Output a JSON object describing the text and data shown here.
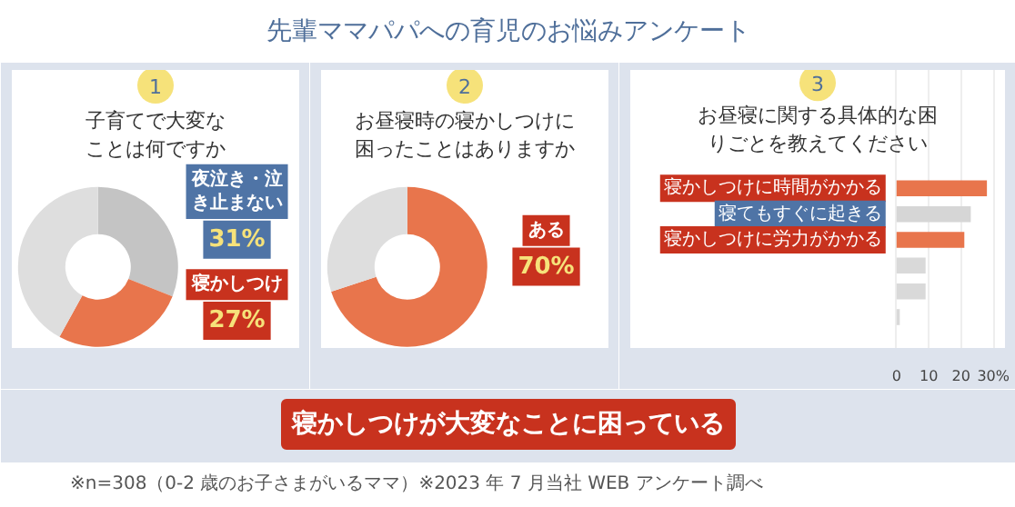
{
  "chart_data": [
    {
      "type": "other",
      "title": "先輩ママパパへの育児のお悩みアンケート",
      "annotations": [
        "寝かしつけが大変なことに困っている",
        "※n=308（0-2 歳のお子さまがいるママ）※2023 年 7 月当社 WEB アンケート調べ"
      ]
    },
    {
      "type": "donut",
      "title": "子育てで大変なことは何ですか",
      "annotations": [
        "1"
      ],
      "categories": [
        "夜泣き・泣き止まない",
        "寝かしつけ",
        null
      ],
      "values": [
        31,
        27,
        42
      ],
      "colors": [
        "#c4c4c4",
        "#e8754c",
        "#dedede"
      ],
      "value_labels": [
        "31%",
        "27%",
        null
      ]
    },
    {
      "type": "donut",
      "title": "お昼寝時の寝かしつけに困ったことはありますか",
      "annotations": [
        "2"
      ],
      "categories": [
        "ある",
        null
      ],
      "values": [
        70,
        30
      ],
      "colors": [
        "#e8754c",
        "#dedede"
      ],
      "value_labels": [
        "70%",
        null
      ]
    },
    {
      "type": "bar",
      "orientation": "horizontal",
      "title": "お昼寝に関する具体的な困りごとを教えてください",
      "annotations": [
        "3"
      ],
      "categories": [
        "寝かしつけに時間がかかる",
        "寝てもすぐに起きる",
        "寝かしつけに労力がかかる",
        null,
        null,
        null
      ],
      "values": [
        28,
        23,
        21,
        9,
        9,
        1
      ],
      "colors": [
        "#e8754c",
        "#d6d6d6",
        "#e8754c",
        "#d9d9d9",
        "#d9d9d9",
        "#d9d9d9"
      ],
      "xlim": [
        0,
        30
      ],
      "xticks": [
        0,
        10,
        20,
        {
          "value": 30,
          "label": "30%"
        }
      ],
      "grid": "x"
    }
  ]
}
